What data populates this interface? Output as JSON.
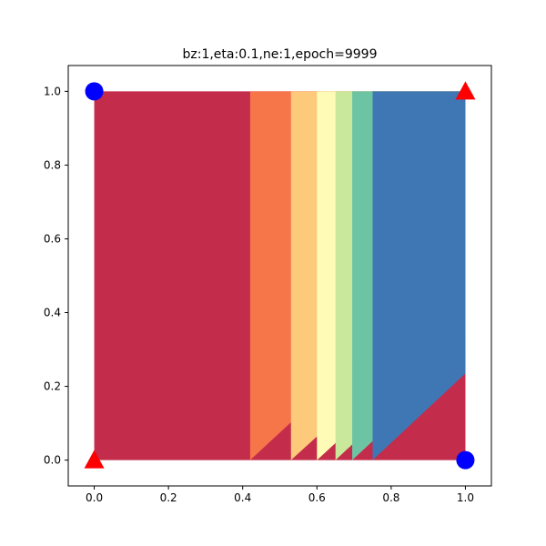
{
  "chart_data": {
    "type": "scatter",
    "title": "bz:1,eta:0.1,ne:1,epoch=9999",
    "xlabel": "",
    "ylabel": "",
    "xlim": [
      -0.07,
      1.07
    ],
    "ylim": [
      -0.07,
      1.07
    ],
    "xticks": [
      "0.0",
      "0.2",
      "0.4",
      "0.6",
      "0.8",
      "1.0"
    ],
    "yticks": [
      "0.0",
      "0.2",
      "0.4",
      "0.6",
      "0.8",
      "1.0"
    ],
    "grid": false,
    "legend": "none",
    "background_region": {
      "x": [
        0,
        1
      ],
      "y": [
        0,
        1
      ],
      "color": "#c42c4b"
    },
    "contour_bands": [
      {
        "color": "#f67549",
        "polygon": [
          [
            0.42,
            0.0
          ],
          [
            1.0,
            0.54
          ],
          [
            1.0,
            1.0
          ],
          [
            0.42,
            1.0
          ]
        ]
      },
      {
        "color": "#fdc97a",
        "polygon": [
          [
            0.53,
            0.0
          ],
          [
            1.0,
            0.43
          ],
          [
            1.0,
            1.0
          ],
          [
            0.53,
            1.0
          ]
        ]
      },
      {
        "color": "#fefbb6",
        "polygon": [
          [
            0.6,
            0.0
          ],
          [
            1.0,
            0.37
          ],
          [
            1.0,
            1.0
          ],
          [
            0.6,
            1.0
          ]
        ]
      },
      {
        "color": "#cae89b",
        "polygon": [
          [
            0.65,
            0.0
          ],
          [
            1.0,
            0.33
          ],
          [
            1.0,
            1.0
          ],
          [
            0.65,
            1.0
          ]
        ]
      },
      {
        "color": "#6dc4a4",
        "polygon": [
          [
            0.695,
            0.0
          ],
          [
            1.0,
            0.285
          ],
          [
            1.0,
            1.0
          ],
          [
            0.695,
            1.0
          ]
        ]
      },
      {
        "color": "#3f77b4",
        "polygon": [
          [
            0.75,
            0.0
          ],
          [
            1.0,
            0.235
          ],
          [
            1.0,
            1.0
          ],
          [
            0.75,
            1.0
          ]
        ]
      }
    ],
    "series": [
      {
        "marker": "triangle",
        "color": "#ff0000",
        "points": [
          [
            0,
            0
          ],
          [
            1,
            1
          ]
        ]
      },
      {
        "marker": "circle",
        "color": "#0000ff",
        "points": [
          [
            0,
            1
          ],
          [
            1,
            0
          ]
        ]
      }
    ]
  }
}
